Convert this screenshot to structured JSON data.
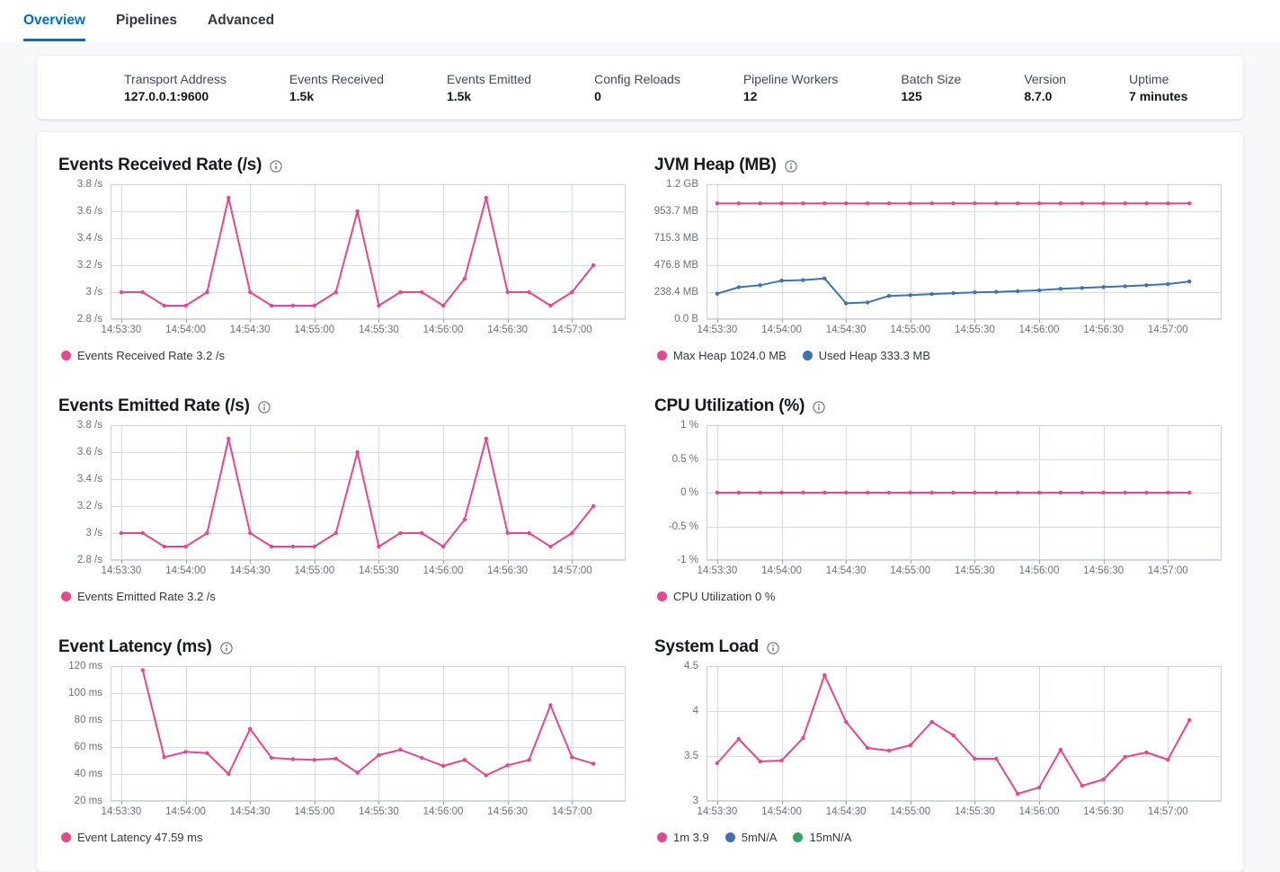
{
  "tabs": [
    {
      "label": "Overview",
      "active": true
    },
    {
      "label": "Pipelines",
      "active": false
    },
    {
      "label": "Advanced",
      "active": false
    }
  ],
  "summary": {
    "items": [
      {
        "label": "Transport Address",
        "value": "127.0.0.1:9600"
      },
      {
        "label": "Events Received",
        "value": "1.5k"
      },
      {
        "label": "Events Emitted",
        "value": "1.5k"
      },
      {
        "label": "Config Reloads",
        "value": "0"
      },
      {
        "label": "Pipeline Workers",
        "value": "12"
      },
      {
        "label": "Batch Size",
        "value": "125"
      },
      {
        "label": "Version",
        "value": "8.7.0"
      },
      {
        "label": "Uptime",
        "value": "7 minutes"
      }
    ]
  },
  "colors": {
    "tab_active_blue": "#0071c2",
    "line_pink": "#e7478b",
    "line_blue": "#3d73b0",
    "line_green": "#2fa35f",
    "grid": "#d3dae6"
  },
  "icons": [
    "info-icon"
  ],
  "chart_data": [
    {
      "type": "line",
      "title": "Events Received Rate (/s)",
      "slug": "events-received-rate",
      "xlabel": "",
      "ylabel": "",
      "x_ticks": {
        "labels": [
          "14:53:30",
          "14:54:00",
          "14:54:30",
          "14:55:00",
          "14:55:30",
          "14:56:00",
          "14:56:30",
          "14:57:00"
        ],
        "seconds": [
          0,
          30,
          60,
          90,
          120,
          150,
          180,
          210
        ]
      },
      "x_domain_seconds": [
        -5,
        235
      ],
      "y_domain": [
        2.8,
        3.8
      ],
      "y_ticks": [
        {
          "label": "3.8 /s",
          "value": 3.8
        },
        {
          "label": "3.6 /s",
          "value": 3.6
        },
        {
          "label": "3.4 /s",
          "value": 3.4
        },
        {
          "label": "3.2 /s",
          "value": 3.2
        },
        {
          "label": "3 /s",
          "value": 3.0
        },
        {
          "label": "2.8 /s",
          "value": 2.8
        }
      ],
      "series": [
        {
          "name": "Events Received Rate",
          "color": "#e7478b",
          "x_start_seconds": 0,
          "x_step_seconds": 10,
          "values": [
            3.0,
            3.0,
            2.9,
            2.9,
            3.0,
            3.7,
            3.0,
            2.9,
            2.9,
            2.9,
            3.0,
            3.6,
            2.9,
            3.0,
            3.0,
            2.9,
            3.1,
            3.7,
            3.0,
            3.0,
            2.9,
            3.0,
            3.2
          ]
        }
      ],
      "legend": [
        {
          "label": "Events Received Rate 3.2 /s",
          "color": "#e7478b"
        }
      ]
    },
    {
      "type": "line",
      "title": "JVM Heap (MB)",
      "slug": "jvm-heap",
      "xlabel": "",
      "ylabel": "",
      "x_ticks": {
        "labels": [
          "14:53:30",
          "14:54:00",
          "14:54:30",
          "14:55:00",
          "14:55:30",
          "14:56:00",
          "14:56:30",
          "14:57:00"
        ],
        "seconds": [
          0,
          30,
          60,
          90,
          120,
          150,
          180,
          210
        ]
      },
      "x_domain_seconds": [
        -5,
        235
      ],
      "y_domain": [
        0,
        1192.1
      ],
      "y_ticks": [
        {
          "label": "1.2 GB",
          "value": 1192.1
        },
        {
          "label": "953.7 MB",
          "value": 953.7
        },
        {
          "label": "715.3 MB",
          "value": 715.3
        },
        {
          "label": "476.8 MB",
          "value": 476.8
        },
        {
          "label": "238.4 MB",
          "value": 238.4
        },
        {
          "label": "0.0 B",
          "value": 0
        }
      ],
      "series": [
        {
          "name": "Max Heap",
          "color": "#e7478b",
          "x_start_seconds": 0,
          "x_step_seconds": 10,
          "values": [
            1024,
            1024,
            1024,
            1024,
            1024,
            1024,
            1024,
            1024,
            1024,
            1024,
            1024,
            1024,
            1024,
            1024,
            1024,
            1024,
            1024,
            1024,
            1024,
            1024,
            1024,
            1024,
            1024
          ]
        },
        {
          "name": "Used Heap",
          "color": "#3d73b0",
          "x_start_seconds": 0,
          "x_step_seconds": 10,
          "values": [
            225,
            282,
            300,
            340,
            345,
            360,
            140,
            148,
            205,
            212,
            222,
            230,
            237,
            241,
            247,
            255,
            268,
            276,
            284,
            291,
            300,
            310,
            333.3
          ]
        }
      ],
      "legend": [
        {
          "label": "Max Heap 1024.0 MB",
          "color": "#e7478b"
        },
        {
          "label": "Used Heap 333.3 MB",
          "color": "#3d73b0"
        }
      ]
    },
    {
      "type": "line",
      "title": "Events Emitted Rate (/s)",
      "slug": "events-emitted-rate",
      "xlabel": "",
      "ylabel": "",
      "x_ticks": {
        "labels": [
          "14:53:30",
          "14:54:00",
          "14:54:30",
          "14:55:00",
          "14:55:30",
          "14:56:00",
          "14:56:30",
          "14:57:00"
        ],
        "seconds": [
          0,
          30,
          60,
          90,
          120,
          150,
          180,
          210
        ]
      },
      "x_domain_seconds": [
        -5,
        235
      ],
      "y_domain": [
        2.8,
        3.8
      ],
      "y_ticks": [
        {
          "label": "3.8 /s",
          "value": 3.8
        },
        {
          "label": "3.6 /s",
          "value": 3.6
        },
        {
          "label": "3.4 /s",
          "value": 3.4
        },
        {
          "label": "3.2 /s",
          "value": 3.2
        },
        {
          "label": "3 /s",
          "value": 3.0
        },
        {
          "label": "2.8 /s",
          "value": 2.8
        }
      ],
      "series": [
        {
          "name": "Events Emitted Rate",
          "color": "#e7478b",
          "x_start_seconds": 0,
          "x_step_seconds": 10,
          "values": [
            3.0,
            3.0,
            2.9,
            2.9,
            3.0,
            3.7,
            3.0,
            2.9,
            2.9,
            2.9,
            3.0,
            3.6,
            2.9,
            3.0,
            3.0,
            2.9,
            3.1,
            3.7,
            3.0,
            3.0,
            2.9,
            3.0,
            3.2
          ]
        }
      ],
      "legend": [
        {
          "label": "Events Emitted Rate 3.2 /s",
          "color": "#e7478b"
        }
      ]
    },
    {
      "type": "line",
      "title": "CPU Utilization (%)",
      "slug": "cpu-utilization",
      "xlabel": "",
      "ylabel": "",
      "x_ticks": {
        "labels": [
          "14:53:30",
          "14:54:00",
          "14:54:30",
          "14:55:00",
          "14:55:30",
          "14:56:00",
          "14:56:30",
          "14:57:00"
        ],
        "seconds": [
          0,
          30,
          60,
          90,
          120,
          150,
          180,
          210
        ]
      },
      "x_domain_seconds": [
        -5,
        235
      ],
      "y_domain": [
        -1,
        1
      ],
      "y_ticks": [
        {
          "label": "1 %",
          "value": 1
        },
        {
          "label": "0.5 %",
          "value": 0.5
        },
        {
          "label": "0 %",
          "value": 0
        },
        {
          "label": "-0.5 %",
          "value": -0.5
        },
        {
          "label": "-1 %",
          "value": -1
        }
      ],
      "series": [
        {
          "name": "CPU Utilization",
          "color": "#e7478b",
          "x_start_seconds": 0,
          "x_step_seconds": 10,
          "values": [
            0,
            0,
            0,
            0,
            0,
            0,
            0,
            0,
            0,
            0,
            0,
            0,
            0,
            0,
            0,
            0,
            0,
            0,
            0,
            0,
            0,
            0,
            0
          ]
        }
      ],
      "legend": [
        {
          "label": "CPU Utilization 0 %",
          "color": "#e7478b"
        }
      ]
    },
    {
      "type": "line",
      "title": "Event Latency (ms)",
      "slug": "event-latency",
      "xlabel": "",
      "ylabel": "",
      "x_ticks": {
        "labels": [
          "14:53:30",
          "14:54:00",
          "14:54:30",
          "14:55:00",
          "14:55:30",
          "14:56:00",
          "14:56:30",
          "14:57:00"
        ],
        "seconds": [
          0,
          30,
          60,
          90,
          120,
          150,
          180,
          210
        ]
      },
      "x_domain_seconds": [
        -5,
        235
      ],
      "y_domain": [
        20,
        120
      ],
      "y_ticks": [
        {
          "label": "120 ms",
          "value": 120
        },
        {
          "label": "100 ms",
          "value": 100
        },
        {
          "label": "80 ms",
          "value": 80
        },
        {
          "label": "60 ms",
          "value": 60
        },
        {
          "label": "40 ms",
          "value": 40
        },
        {
          "label": "20 ms",
          "value": 20
        }
      ],
      "series": [
        {
          "name": "Event Latency",
          "color": "#e7478b",
          "x_start_seconds": 10,
          "x_step_seconds": 10,
          "values": [
            117,
            52.5,
            56.5,
            55.5,
            40,
            73.5,
            52,
            51,
            50.5,
            51.5,
            41,
            54,
            58,
            52,
            46,
            50.5,
            39,
            46.5,
            50.5,
            91,
            52.5,
            47.59
          ]
        }
      ],
      "legend": [
        {
          "label": "Event Latency 47.59 ms",
          "color": "#e7478b"
        }
      ]
    },
    {
      "type": "line",
      "title": "System Load",
      "slug": "system-load",
      "xlabel": "",
      "ylabel": "",
      "x_ticks": {
        "labels": [
          "14:53:30",
          "14:54:00",
          "14:54:30",
          "14:55:00",
          "14:55:30",
          "14:56:00",
          "14:56:30",
          "14:57:00"
        ],
        "seconds": [
          0,
          30,
          60,
          90,
          120,
          150,
          180,
          210
        ]
      },
      "x_domain_seconds": [
        -5,
        235
      ],
      "y_domain": [
        3,
        4.5
      ],
      "y_ticks": [
        {
          "label": "4.5",
          "value": 4.5
        },
        {
          "label": "4",
          "value": 4
        },
        {
          "label": "3.5",
          "value": 3.5
        },
        {
          "label": "3",
          "value": 3
        }
      ],
      "series": [
        {
          "name": "1m",
          "color": "#e7478b",
          "x_start_seconds": 0,
          "x_step_seconds": 10,
          "values": [
            3.42,
            3.69,
            3.44,
            3.45,
            3.7,
            4.4,
            3.88,
            3.59,
            3.56,
            3.62,
            3.88,
            3.73,
            3.47,
            3.47,
            3.08,
            3.15,
            3.57,
            3.17,
            3.24,
            3.49,
            3.54,
            3.46,
            3.9
          ]
        }
      ],
      "legend": [
        {
          "label": "1m 3.9",
          "color": "#e7478b"
        },
        {
          "label": "5mN/A",
          "color": "#3d73b0"
        },
        {
          "label": "15mN/A",
          "color": "#2fa35f"
        }
      ]
    }
  ]
}
